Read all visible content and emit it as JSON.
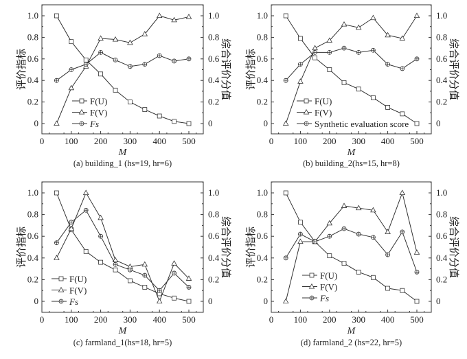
{
  "chart_data": [
    {
      "type": "line",
      "title": "(a) building_1 (hs=19, hr=6)",
      "xlabel": "M",
      "ylabel": "评价指标",
      "y2label": "综合评价分值",
      "x": [
        50,
        100,
        150,
        200,
        250,
        300,
        350,
        400,
        450,
        500
      ],
      "xlim": [
        0,
        550
      ],
      "xticks": [
        0,
        100,
        200,
        300,
        400,
        500
      ],
      "ylim": [
        -0.1,
        1.1
      ],
      "yticks": [
        0,
        0.2,
        0.4,
        0.6,
        0.8,
        1.0
      ],
      "ytick_labels": [
        "0",
        "0.2",
        "0.4",
        "0.6",
        "0.8",
        "1.0"
      ],
      "grid": false,
      "legend": "bottom-left",
      "series": [
        {
          "name": "F(U)",
          "marker": "square",
          "values": [
            1.0,
            0.76,
            0.59,
            0.46,
            0.31,
            0.2,
            0.13,
            0.07,
            0.02,
            0.0
          ]
        },
        {
          "name": "F(V)",
          "marker": "triangle",
          "values": [
            0.0,
            0.33,
            0.53,
            0.79,
            0.78,
            0.75,
            0.83,
            1.0,
            0.96,
            0.99
          ]
        },
        {
          "name": "Fs",
          "marker": "circle-cross",
          "values": [
            0.4,
            0.5,
            0.55,
            0.66,
            0.59,
            0.53,
            0.55,
            0.63,
            0.58,
            0.6
          ]
        }
      ]
    },
    {
      "type": "line",
      "title": "(b) building_2(hs=15, hr=8)",
      "xlabel": "M",
      "ylabel": "评价指标",
      "y2label": "综合评价分值",
      "x": [
        50,
        100,
        150,
        200,
        250,
        300,
        350,
        400,
        450,
        500
      ],
      "xlim": [
        0,
        550
      ],
      "xticks": [
        0,
        100,
        200,
        300,
        400,
        500
      ],
      "ylim": [
        -0.1,
        1.1
      ],
      "yticks": [
        0,
        0.2,
        0.4,
        0.6,
        0.8,
        1.0
      ],
      "ytick_labels": [
        "0",
        "0.2",
        "0.4",
        "0.6",
        "0.8",
        "1.0"
      ],
      "grid": false,
      "legend": "bottom-left",
      "series": [
        {
          "name": "F(U)",
          "marker": "square",
          "values": [
            1.0,
            0.79,
            0.61,
            0.5,
            0.38,
            0.32,
            0.24,
            0.15,
            0.09,
            0.0
          ]
        },
        {
          "name": "F(V)",
          "marker": "triangle",
          "values": [
            0.0,
            0.39,
            0.7,
            0.77,
            0.92,
            0.89,
            0.98,
            0.82,
            0.79,
            1.0
          ]
        },
        {
          "name": "Synthetic evaluation score",
          "marker": "circle-cross",
          "values": [
            0.4,
            0.55,
            0.66,
            0.66,
            0.7,
            0.66,
            0.68,
            0.55,
            0.51,
            0.6
          ]
        }
      ]
    },
    {
      "type": "line",
      "title": "(c) farmland_1(hs=18, hr=5)",
      "xlabel": "M",
      "ylabel": "评价指标",
      "y2label": "综合评价分值",
      "x": [
        50,
        100,
        150,
        200,
        250,
        300,
        350,
        400,
        450,
        500
      ],
      "xlim": [
        0,
        550
      ],
      "xticks": [
        0,
        100,
        200,
        300,
        400,
        500
      ],
      "ylim": [
        -0.1,
        1.1
      ],
      "yticks": [
        0,
        0.2,
        0.4,
        0.6,
        0.8,
        1.0
      ],
      "ytick_labels": [
        "0",
        "0.2",
        "0.4",
        "0.6",
        "0.8",
        "1.0"
      ],
      "grid": false,
      "legend": "bottom-left",
      "series": [
        {
          "name": "F(U)",
          "marker": "square",
          "values": [
            1.0,
            0.66,
            0.46,
            0.36,
            0.29,
            0.19,
            0.13,
            0.07,
            0.03,
            0.0
          ]
        },
        {
          "name": "F(V)",
          "marker": "triangle",
          "values": [
            0.4,
            0.67,
            1.0,
            0.77,
            0.38,
            0.32,
            0.34,
            0.0,
            0.35,
            0.21
          ]
        },
        {
          "name": "Fs",
          "marker": "circle-cross",
          "values": [
            0.54,
            0.73,
            0.84,
            0.6,
            0.34,
            0.29,
            0.24,
            0.1,
            0.26,
            0.13
          ]
        }
      ]
    },
    {
      "type": "line",
      "title": "(d) farmland_2 (hs=22, hr=5)",
      "xlabel": "M",
      "ylabel": "评价指标",
      "y2label": "综合评价分值",
      "x": [
        50,
        100,
        150,
        200,
        250,
        300,
        350,
        400,
        450,
        500
      ],
      "xlim": [
        0,
        550
      ],
      "xticks": [
        0,
        100,
        200,
        300,
        400,
        500
      ],
      "ylim": [
        -0.1,
        1.1
      ],
      "yticks": [
        0,
        0.2,
        0.4,
        0.6,
        0.8,
        1.0
      ],
      "ytick_labels": [
        "0",
        "0.2",
        "0.4",
        "0.6",
        "0.8",
        "1.0"
      ],
      "grid": false,
      "legend": "bottom-left",
      "series": [
        {
          "name": "F(U)",
          "marker": "square",
          "values": [
            1.0,
            0.73,
            0.55,
            0.42,
            0.35,
            0.27,
            0.22,
            0.12,
            0.1,
            0.0
          ]
        },
        {
          "name": "F(V)",
          "marker": "triangle",
          "values": [
            0.0,
            0.55,
            0.55,
            0.72,
            0.88,
            0.86,
            0.84,
            0.64,
            1.0,
            0.45
          ]
        },
        {
          "name": "Fs",
          "marker": "circle-cross",
          "values": [
            0.4,
            0.62,
            0.55,
            0.6,
            0.67,
            0.62,
            0.59,
            0.43,
            0.64,
            0.27
          ]
        }
      ]
    }
  ]
}
